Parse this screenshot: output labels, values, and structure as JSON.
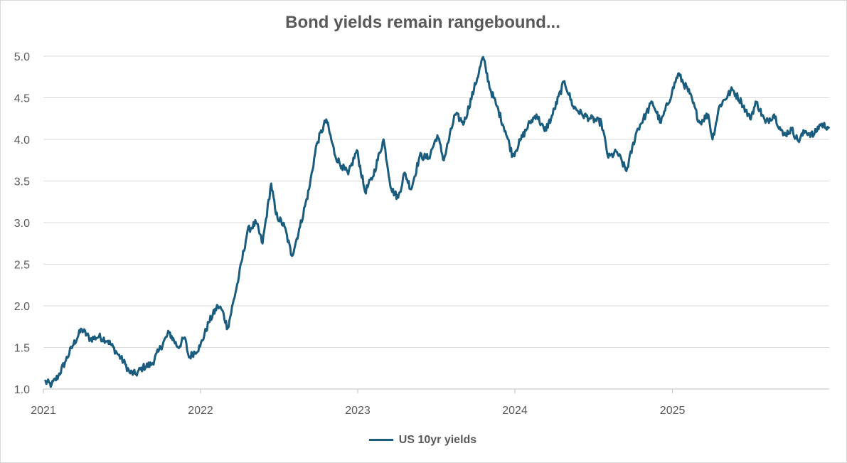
{
  "chart_data": {
    "type": "line",
    "title": "Bond yields remain rangebound...",
    "xlabel": "",
    "ylabel": "",
    "ylim": [
      1.0,
      5.0
    ],
    "y_ticks": [
      "1.0",
      "1.5",
      "2.0",
      "2.5",
      "3.0",
      "3.5",
      "4.0",
      "4.5",
      "5.0"
    ],
    "x_ticks": [
      {
        "label": "2021",
        "date": "2021-01-01"
      },
      {
        "label": "2022",
        "date": "2022-01-01"
      },
      {
        "label": "2023",
        "date": "2023-01-01"
      },
      {
        "label": "2024",
        "date": "2024-01-01"
      },
      {
        "label": "2025",
        "date": "2025-01-01"
      }
    ],
    "xlim": [
      "2021-01-01",
      "2025-12-31"
    ],
    "grid": "horizontal",
    "legend_position": "bottom",
    "colors": {
      "line": "#1a5c7e",
      "grid": "#d9d9d9",
      "axis": "#bfbfbf",
      "text": "#595959"
    },
    "series": [
      {
        "name": "US 10yr yields",
        "points": [
          [
            "2021-01-04",
            1.09
          ],
          [
            "2021-01-20",
            1.05
          ],
          [
            "2021-02-05",
            1.16
          ],
          [
            "2021-02-20",
            1.32
          ],
          [
            "2021-03-10",
            1.52
          ],
          [
            "2021-03-31",
            1.72
          ],
          [
            "2021-04-20",
            1.6
          ],
          [
            "2021-05-10",
            1.63
          ],
          [
            "2021-05-31",
            1.58
          ],
          [
            "2021-06-20",
            1.44
          ],
          [
            "2021-07-10",
            1.3
          ],
          [
            "2021-07-20",
            1.2
          ],
          [
            "2021-08-04",
            1.18
          ],
          [
            "2021-08-20",
            1.26
          ],
          [
            "2021-09-10",
            1.3
          ],
          [
            "2021-09-25",
            1.45
          ],
          [
            "2021-10-20",
            1.68
          ],
          [
            "2021-11-10",
            1.5
          ],
          [
            "2021-11-25",
            1.62
          ],
          [
            "2021-12-05",
            1.38
          ],
          [
            "2021-12-31",
            1.51
          ],
          [
            "2022-01-20",
            1.8
          ],
          [
            "2022-02-10",
            2.0
          ],
          [
            "2022-02-20",
            1.95
          ],
          [
            "2022-03-05",
            1.73
          ],
          [
            "2022-03-31",
            2.35
          ],
          [
            "2022-04-20",
            2.9
          ],
          [
            "2022-05-10",
            3.0
          ],
          [
            "2022-05-25",
            2.75
          ],
          [
            "2022-06-14",
            3.47
          ],
          [
            "2022-06-25",
            3.1
          ],
          [
            "2022-07-15",
            2.95
          ],
          [
            "2022-08-01",
            2.6
          ],
          [
            "2022-08-20",
            2.95
          ],
          [
            "2022-09-10",
            3.4
          ],
          [
            "2022-09-28",
            3.95
          ],
          [
            "2022-10-20",
            4.24
          ],
          [
            "2022-11-10",
            3.8
          ],
          [
            "2022-11-25",
            3.68
          ],
          [
            "2022-12-10",
            3.58
          ],
          [
            "2022-12-30",
            3.87
          ],
          [
            "2023-01-18",
            3.37
          ],
          [
            "2023-02-05",
            3.55
          ],
          [
            "2023-03-02",
            4.0
          ],
          [
            "2023-03-20",
            3.4
          ],
          [
            "2023-04-05",
            3.3
          ],
          [
            "2023-04-20",
            3.6
          ],
          [
            "2023-05-05",
            3.4
          ],
          [
            "2023-05-25",
            3.8
          ],
          [
            "2023-06-15",
            3.78
          ],
          [
            "2023-07-05",
            4.05
          ],
          [
            "2023-07-20",
            3.75
          ],
          [
            "2023-08-15",
            4.3
          ],
          [
            "2023-09-05",
            4.2
          ],
          [
            "2023-09-28",
            4.6
          ],
          [
            "2023-10-19",
            4.99
          ],
          [
            "2023-11-05",
            4.6
          ],
          [
            "2023-11-20",
            4.4
          ],
          [
            "2023-12-10",
            4.1
          ],
          [
            "2023-12-27",
            3.8
          ],
          [
            "2024-01-15",
            4.0
          ],
          [
            "2024-02-05",
            4.2
          ],
          [
            "2024-02-20",
            4.3
          ],
          [
            "2024-03-10",
            4.1
          ],
          [
            "2024-03-25",
            4.25
          ],
          [
            "2024-04-25",
            4.7
          ],
          [
            "2024-05-15",
            4.4
          ],
          [
            "2024-06-05",
            4.3
          ],
          [
            "2024-06-25",
            4.25
          ],
          [
            "2024-07-20",
            4.2
          ],
          [
            "2024-08-05",
            3.78
          ],
          [
            "2024-08-25",
            3.85
          ],
          [
            "2024-09-16",
            3.62
          ],
          [
            "2024-10-10",
            4.1
          ],
          [
            "2024-10-31",
            4.3
          ],
          [
            "2024-11-15",
            4.45
          ],
          [
            "2024-12-05",
            4.2
          ],
          [
            "2024-12-31",
            4.57
          ],
          [
            "2025-01-14",
            4.79
          ],
          [
            "2025-02-10",
            4.55
          ],
          [
            "2025-03-05",
            4.2
          ],
          [
            "2025-03-25",
            4.3
          ],
          [
            "2025-04-04",
            4.0
          ],
          [
            "2025-04-20",
            4.4
          ],
          [
            "2025-05-20",
            4.6
          ],
          [
            "2025-06-10",
            4.45
          ],
          [
            "2025-06-30",
            4.25
          ],
          [
            "2025-07-15",
            4.45
          ],
          [
            "2025-08-05",
            4.2
          ],
          [
            "2025-08-25",
            4.3
          ],
          [
            "2025-09-15",
            4.05
          ],
          [
            "2025-10-05",
            4.12
          ],
          [
            "2025-10-20",
            3.98
          ],
          [
            "2025-11-05",
            4.1
          ],
          [
            "2025-11-25",
            4.05
          ],
          [
            "2025-12-10",
            4.18
          ],
          [
            "2025-12-31",
            4.15
          ]
        ]
      }
    ]
  }
}
